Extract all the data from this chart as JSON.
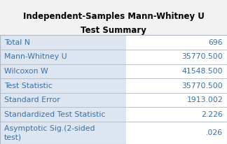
{
  "title_line1": "Independent-Samples Mann-Whitney U",
  "title_line2": "Test Summary",
  "rows": [
    [
      "Total N",
      "696"
    ],
    [
      "Mann-Whitney U",
      "35770.500"
    ],
    [
      "Wilcoxon W",
      "41548.500"
    ],
    [
      "Test Statistic",
      "35770.500"
    ],
    [
      "Standard Error",
      "1913.002"
    ],
    [
      "Standardized Test Statistic",
      "2.226"
    ],
    [
      "Asymptotic Sig.(2-sided\ntest)",
      ".026"
    ]
  ],
  "col_split": 0.555,
  "bg_color": "#f2f2f2",
  "cell_bg_left": "#dde6f0",
  "cell_bg_right": "#ffffff",
  "border_color": "#b0b8c4",
  "title_fontsize": 8.5,
  "cell_fontsize": 7.8,
  "text_color": "#3a6fa8",
  "title_color": "#000000"
}
